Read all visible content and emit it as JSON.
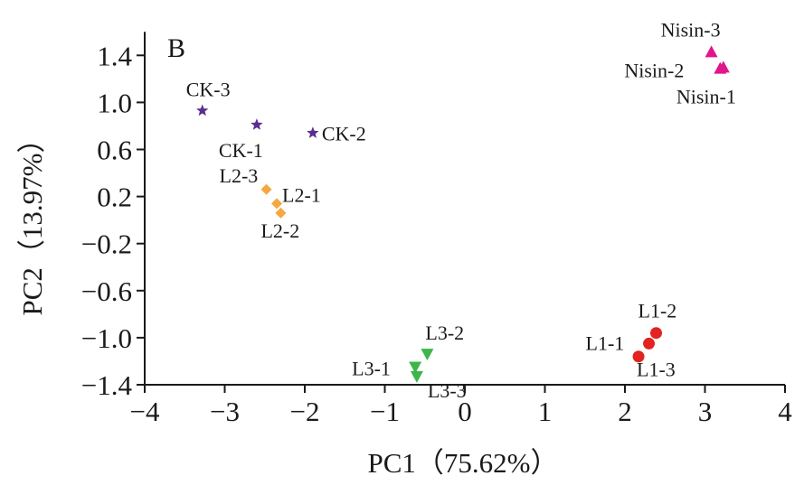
{
  "chart_data": {
    "type": "scatter",
    "panel_label": "B",
    "xlabel": "PC1（75.62%）",
    "ylabel": "PC2（13.97%）",
    "xlim": [
      -4,
      4
    ],
    "ylim": [
      -1.4,
      1.6
    ],
    "x_ticks": [
      -4,
      -3,
      -2,
      -1,
      0,
      1,
      2,
      3,
      4
    ],
    "y_ticks": [
      -1.4,
      -1.0,
      -0.6,
      -0.2,
      0.2,
      0.6,
      1.0,
      1.4
    ],
    "x_tick_labels": [
      "−4",
      "−3",
      "−2",
      "−1",
      "0",
      "1",
      "2",
      "3",
      "4"
    ],
    "y_tick_labels": [
      "−1.4",
      "−1.0",
      "−0.6",
      "−0.2",
      "0.2",
      "0.6",
      "1.0",
      "1.4"
    ],
    "grid": false,
    "legend": "none",
    "series": [
      {
        "group": "CK",
        "marker": "star",
        "color": "#5b2d90",
        "points": [
          {
            "label": "CK-1",
            "x": -2.6,
            "y": 0.81
          },
          {
            "label": "CK-2",
            "x": -1.9,
            "y": 0.74
          },
          {
            "label": "CK-3",
            "x": -3.28,
            "y": 0.93
          }
        ]
      },
      {
        "group": "L2",
        "marker": "diamond",
        "color": "#f5a742",
        "points": [
          {
            "label": "L2-1",
            "x": -2.35,
            "y": 0.14
          },
          {
            "label": "L2-2",
            "x": -2.3,
            "y": 0.06
          },
          {
            "label": "L2-3",
            "x": -2.48,
            "y": 0.26
          }
        ]
      },
      {
        "group": "Nisin",
        "marker": "triangle-up",
        "color": "#e0168c",
        "points": [
          {
            "label": "Nisin-1",
            "x": 3.23,
            "y": 1.3
          },
          {
            "label": "Nisin-2",
            "x": 3.19,
            "y": 1.29
          },
          {
            "label": "Nisin-3",
            "x": 3.08,
            "y": 1.43
          }
        ]
      },
      {
        "group": "L1",
        "marker": "circle",
        "color": "#e32222",
        "points": [
          {
            "label": "L1-1",
            "x": 2.3,
            "y": -1.05
          },
          {
            "label": "L1-2",
            "x": 2.39,
            "y": -0.96
          },
          {
            "label": "L1-3",
            "x": 2.17,
            "y": -1.16
          }
        ]
      },
      {
        "group": "L3",
        "marker": "triangle-down",
        "color": "#3db54a",
        "points": [
          {
            "label": "L3-1",
            "x": -0.62,
            "y": -1.25
          },
          {
            "label": "L3-2",
            "x": -0.47,
            "y": -1.14
          },
          {
            "label": "L3-3",
            "x": -0.6,
            "y": -1.33
          }
        ]
      }
    ]
  }
}
